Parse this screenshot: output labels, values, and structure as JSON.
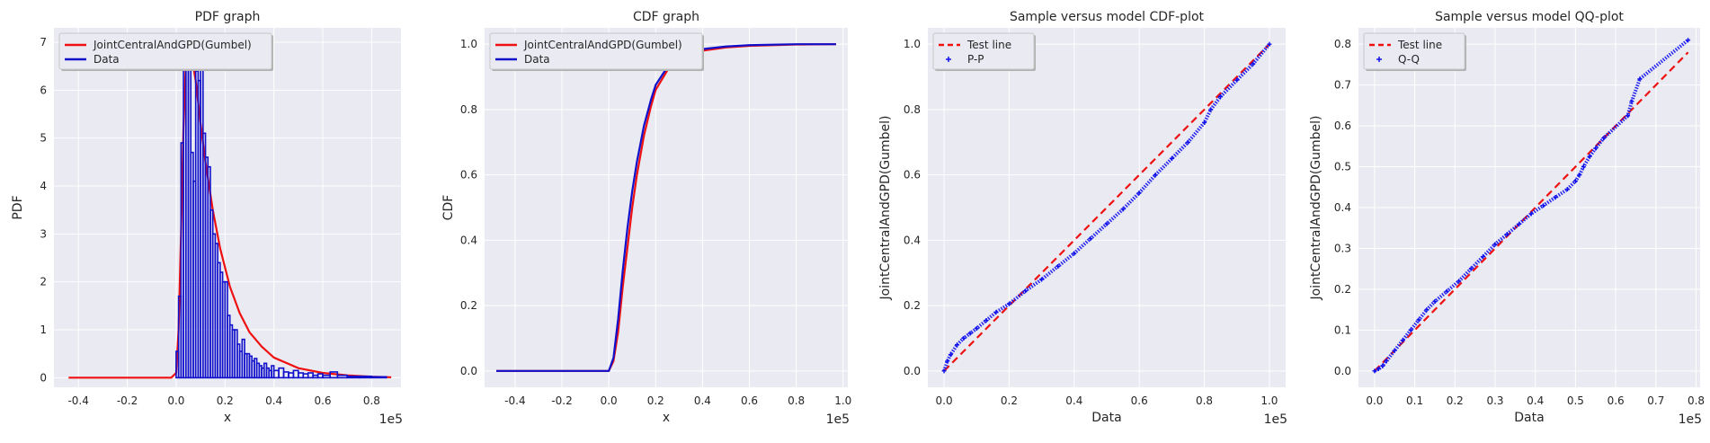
{
  "chart_data": [
    {
      "type": "line",
      "title": "PDF graph",
      "xlabel": "x",
      "ylabel": "PDF",
      "x_offset_label": "1e5",
      "xlim": [
        -0.5,
        0.92
      ],
      "ylim": [
        -0.2,
        7.3
      ],
      "xticks": [
        -0.4,
        -0.2,
        0.0,
        0.2,
        0.4,
        0.6,
        0.8
      ],
      "xtick_labels": [
        "-0.4",
        "-0.2",
        "0.0",
        "0.2",
        "0.4",
        "0.6",
        "0.8"
      ],
      "yticks": [
        0,
        1,
        2,
        3,
        4,
        5,
        6,
        7
      ],
      "ytick_labels": [
        "0",
        "1",
        "2",
        "3",
        "4",
        "5",
        "6",
        "7"
      ],
      "grid": true,
      "legend": "top-left",
      "series": [
        {
          "name": "JointCentralAndGPD(Gumbel)",
          "color": "#ee1111",
          "style": "solid",
          "x": [
            -0.44,
            -0.2,
            -0.02,
            0.0,
            0.01,
            0.02,
            0.03,
            0.04,
            0.05,
            0.06,
            0.07,
            0.08,
            0.1,
            0.12,
            0.15,
            0.18,
            0.22,
            0.26,
            0.3,
            0.35,
            0.4,
            0.5,
            0.6,
            0.7,
            0.8,
            0.88
          ],
          "y": [
            0,
            0,
            0,
            0.1,
            1.0,
            3.0,
            5.2,
            6.6,
            6.9,
            6.8,
            6.5,
            6.2,
            5.3,
            4.5,
            3.5,
            2.7,
            1.9,
            1.35,
            0.95,
            0.65,
            0.42,
            0.2,
            0.1,
            0.05,
            0.02,
            0.01
          ]
        },
        {
          "name": "Data",
          "color": "#1111cc",
          "style": "histogram",
          "bin_edges": [
            0.0,
            0.01,
            0.02,
            0.03,
            0.04,
            0.05,
            0.06,
            0.07,
            0.08,
            0.09,
            0.1,
            0.11,
            0.12,
            0.13,
            0.14,
            0.15,
            0.16,
            0.17,
            0.18,
            0.19,
            0.2,
            0.21,
            0.22,
            0.23,
            0.24,
            0.25,
            0.26,
            0.27,
            0.28,
            0.29,
            0.3,
            0.31,
            0.32,
            0.33,
            0.34,
            0.35,
            0.36,
            0.37,
            0.38,
            0.39,
            0.4,
            0.42,
            0.44,
            0.46,
            0.48,
            0.5,
            0.52,
            0.54,
            0.56,
            0.58,
            0.6,
            0.63,
            0.66,
            0.7,
            0.75,
            0.8,
            0.86
          ],
          "values": [
            0.55,
            1.7,
            4.9,
            7.0,
            6.8,
            6.9,
            4.7,
            4.1,
            6.4,
            6.2,
            6.7,
            5.1,
            4.6,
            4.4,
            3.5,
            3.0,
            2.8,
            2.4,
            2.2,
            2.0,
            2.0,
            1.3,
            1.1,
            1.0,
            1.0,
            0.7,
            0.55,
            0.8,
            0.5,
            0.5,
            0.45,
            0.35,
            0.4,
            0.3,
            0.25,
            0.2,
            0.3,
            0.2,
            0.15,
            0.25,
            0.15,
            0.2,
            0.12,
            0.1,
            0.15,
            0.1,
            0.08,
            0.1,
            0.05,
            0.08,
            0.05,
            0.12,
            0.05,
            0.03,
            0.03,
            0.02
          ]
        }
      ]
    },
    {
      "type": "line",
      "title": "CDF graph",
      "xlabel": "x",
      "ylabel": "CDF",
      "x_offset_label": "1e5",
      "xlim": [
        -0.53,
        1.02
      ],
      "ylim": [
        -0.05,
        1.05
      ],
      "xticks": [
        -0.4,
        -0.2,
        0.0,
        0.2,
        0.4,
        0.6,
        0.8,
        1.0
      ],
      "xtick_labels": [
        "-0.4",
        "-0.2",
        "0.0",
        "0.2",
        "0.4",
        "0.6",
        "0.8",
        "1.0"
      ],
      "yticks": [
        0.0,
        0.2,
        0.4,
        0.6,
        0.8,
        1.0
      ],
      "ytick_labels": [
        "0.0",
        "0.2",
        "0.4",
        "0.6",
        "0.8",
        "1.0"
      ],
      "grid": true,
      "legend": "top-left",
      "series": [
        {
          "name": "JointCentralAndGPD(Gumbel)",
          "color": "#ee1111",
          "x": [
            -0.48,
            -0.2,
            0.0,
            0.02,
            0.04,
            0.06,
            0.08,
            0.1,
            0.12,
            0.15,
            0.18,
            0.2,
            0.25,
            0.3,
            0.35,
            0.4,
            0.5,
            0.6,
            0.8,
            0.97
          ],
          "y": [
            0,
            0,
            0,
            0.03,
            0.12,
            0.26,
            0.38,
            0.5,
            0.6,
            0.72,
            0.81,
            0.86,
            0.92,
            0.955,
            0.97,
            0.98,
            0.99,
            0.995,
            0.999,
            1.0
          ]
        },
        {
          "name": "Data",
          "color": "#1111cc",
          "x": [
            -0.48,
            -0.2,
            0.0,
            0.02,
            0.04,
            0.06,
            0.08,
            0.1,
            0.12,
            0.15,
            0.18,
            0.2,
            0.25,
            0.3,
            0.35,
            0.4,
            0.5,
            0.6,
            0.8,
            0.97
          ],
          "y": [
            0,
            0,
            0,
            0.04,
            0.16,
            0.31,
            0.44,
            0.55,
            0.64,
            0.75,
            0.83,
            0.875,
            0.93,
            0.96,
            0.975,
            0.985,
            0.993,
            0.997,
            1.0,
            1.0
          ]
        }
      ]
    },
    {
      "type": "scatter",
      "title": "Sample versus model CDF-plot",
      "xlabel": "Data",
      "ylabel": "JointCentralAndGPD(Gumbel)",
      "x_offset_label": "1e5",
      "xlim": [
        -0.05,
        1.05
      ],
      "ylim": [
        -0.05,
        1.05
      ],
      "xticks": [
        0.0,
        0.2,
        0.4,
        0.6,
        0.8,
        1.0
      ],
      "xtick_labels": [
        "0.0",
        "0.2",
        "0.4",
        "0.6",
        "0.8",
        "1.0"
      ],
      "yticks": [
        0.0,
        0.2,
        0.4,
        0.6,
        0.8,
        1.0
      ],
      "ytick_labels": [
        "0.0",
        "0.2",
        "0.4",
        "0.6",
        "0.8",
        "1.0"
      ],
      "grid": true,
      "legend": "top-left",
      "series": [
        {
          "name": "Test line",
          "color": "#ee1111",
          "style": "dashed",
          "x": [
            0.0,
            1.0
          ],
          "y": [
            0.0,
            1.0
          ]
        },
        {
          "name": "P-P",
          "color": "#1111ee",
          "style": "markers",
          "x": [
            0.0,
            0.01,
            0.02,
            0.04,
            0.06,
            0.08,
            0.1,
            0.13,
            0.16,
            0.2,
            0.25,
            0.3,
            0.35,
            0.4,
            0.45,
            0.5,
            0.55,
            0.6,
            0.65,
            0.7,
            0.75,
            0.8,
            0.82,
            0.85,
            0.9,
            0.95,
            1.0
          ],
          "y": [
            0.0,
            0.03,
            0.05,
            0.08,
            0.1,
            0.115,
            0.13,
            0.155,
            0.18,
            0.205,
            0.245,
            0.28,
            0.32,
            0.36,
            0.405,
            0.45,
            0.495,
            0.545,
            0.6,
            0.65,
            0.7,
            0.76,
            0.8,
            0.84,
            0.89,
            0.94,
            1.0
          ]
        }
      ]
    },
    {
      "type": "scatter",
      "title": "Sample versus model QQ-plot",
      "xlabel": "Data",
      "ylabel": "JointCentralAndGPD(Gumbel)",
      "x_offset_label": "1e5",
      "xlim": [
        -0.04,
        0.81
      ],
      "ylim": [
        -0.04,
        0.84
      ],
      "xticks": [
        0.0,
        0.1,
        0.2,
        0.3,
        0.4,
        0.5,
        0.6,
        0.7,
        0.8
      ],
      "xtick_labels": [
        "0.0",
        "0.1",
        "0.2",
        "0.3",
        "0.4",
        "0.5",
        "0.6",
        "0.7",
        "0.8"
      ],
      "yticks": [
        0.0,
        0.1,
        0.2,
        0.3,
        0.4,
        0.5,
        0.6,
        0.7,
        0.8
      ],
      "ytick_labels": [
        "0.0",
        "0.1",
        "0.2",
        "0.3",
        "0.4",
        "0.5",
        "0.6",
        "0.7",
        "0.8"
      ],
      "grid": true,
      "legend": "top-left",
      "series": [
        {
          "name": "Test line",
          "color": "#ee1111",
          "style": "dashed",
          "x": [
            0.0,
            0.78
          ],
          "y": [
            0.0,
            0.78
          ]
        },
        {
          "name": "Q-Q",
          "color": "#1111ee",
          "style": "markers",
          "x": [
            0.0,
            0.01,
            0.02,
            0.03,
            0.05,
            0.07,
            0.09,
            0.11,
            0.13,
            0.15,
            0.18,
            0.21,
            0.24,
            0.27,
            0.3,
            0.33,
            0.36,
            0.39,
            0.42,
            0.45,
            0.48,
            0.5,
            0.51,
            0.52,
            0.535,
            0.55,
            0.57,
            0.63,
            0.64,
            0.66,
            0.78
          ],
          "y": [
            0.0,
            0.005,
            0.012,
            0.025,
            0.05,
            0.075,
            0.1,
            0.125,
            0.15,
            0.17,
            0.195,
            0.22,
            0.25,
            0.28,
            0.31,
            0.335,
            0.36,
            0.385,
            0.405,
            0.425,
            0.445,
            0.465,
            0.48,
            0.5,
            0.525,
            0.545,
            0.57,
            0.625,
            0.66,
            0.715,
            0.81
          ]
        }
      ]
    }
  ]
}
